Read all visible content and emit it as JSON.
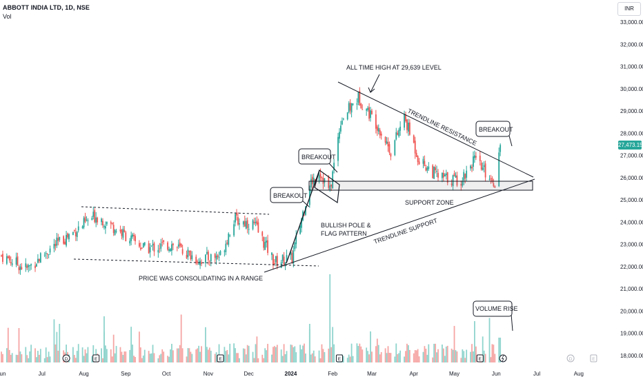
{
  "header": {
    "symbol_line": "ABBOTT INDIA LTD, 1D, NSE",
    "volume_label": "Vol",
    "currency_button": "INR"
  },
  "last_price": "27,473.15",
  "colors": {
    "up": "#26a69a",
    "down": "#ef5350",
    "volume_up": "#8fd4cd",
    "volume_down": "#f5a5a3",
    "price_tag": "#26a69a",
    "lines": "#131722"
  },
  "chart_data": {
    "type": "candlestick",
    "title": "ABBOTT INDIA LTD, 1D, NSE",
    "xlabel": "",
    "ylabel": "",
    "x_ticks": [
      "Jun",
      "Jul",
      "Aug",
      "Sep",
      "Oct",
      "Nov",
      "Dec",
      "2024",
      "Feb",
      "Mar",
      "Apr",
      "May",
      "Jun",
      "Jul",
      "Aug"
    ],
    "y_ticks": [
      "18,000.00",
      "19,000.00",
      "20,000.00",
      "21,000.00",
      "22,000.00",
      "23,000.00",
      "24,000.00",
      "25,000.00",
      "26,000.00",
      "27,000.00",
      "28,000.00",
      "29,000.00",
      "30,000.00",
      "31,000.00",
      "32,000.00",
      "33,000.00"
    ],
    "ylim": [
      17900,
      33500
    ],
    "grid": false,
    "price_path": [
      [
        "2023-06-01",
        22500
      ],
      [
        "2023-06-20",
        21900
      ],
      [
        "2023-07-05",
        22700
      ],
      [
        "2023-07-25",
        23600
      ],
      [
        "2023-08-10",
        24300
      ],
      [
        "2023-08-25",
        23700
      ],
      [
        "2023-09-15",
        22800
      ],
      [
        "2023-10-05",
        23000
      ],
      [
        "2023-10-25",
        22300
      ],
      [
        "2023-11-10",
        22500
      ],
      [
        "2023-11-20",
        24100
      ],
      [
        "2023-12-05",
        23900
      ],
      [
        "2023-12-20",
        22200
      ],
      [
        "2024-01-02",
        22400
      ],
      [
        "2024-01-15",
        25700
      ],
      [
        "2024-01-22",
        26300
      ],
      [
        "2024-01-30",
        25400
      ],
      [
        "2024-02-07",
        28600
      ],
      [
        "2024-02-20",
        29600
      ],
      [
        "2024-03-05",
        28400
      ],
      [
        "2024-03-15",
        27200
      ],
      [
        "2024-03-25",
        28700
      ],
      [
        "2024-04-05",
        26800
      ],
      [
        "2024-04-20",
        26000
      ],
      [
        "2024-05-06",
        25900
      ],
      [
        "2024-05-15",
        26800
      ],
      [
        "2024-05-31",
        25800
      ],
      [
        "2024-06-04",
        27473
      ]
    ],
    "volume_series": "daily volume bars in histogram pane (relative heights only, no axis)",
    "annotations": {
      "all_time_high": "ALL TIME HIGH AT 29,639 LEVEL",
      "trendline_resistance": "TRENDLINE RESISTANCE",
      "breakout_right": "BREAKOUT",
      "breakout_flag": "BREAKOUT",
      "breakout_pole": "BREAKOUT",
      "support_zone": "SUPPORT ZONE",
      "pole_flag_line1": "BULLISH POLE &",
      "pole_flag_line2": "FLAG PATTERN",
      "trendline_support": "TRENDLINE SUPPORT",
      "range_note": "PRICE WAS CONSOLIDATING IN A RANGE",
      "volume_rise": "VOLUME RISE"
    },
    "event_markers": [
      "D",
      "E",
      "E",
      "E",
      "E",
      "D",
      "E"
    ]
  }
}
